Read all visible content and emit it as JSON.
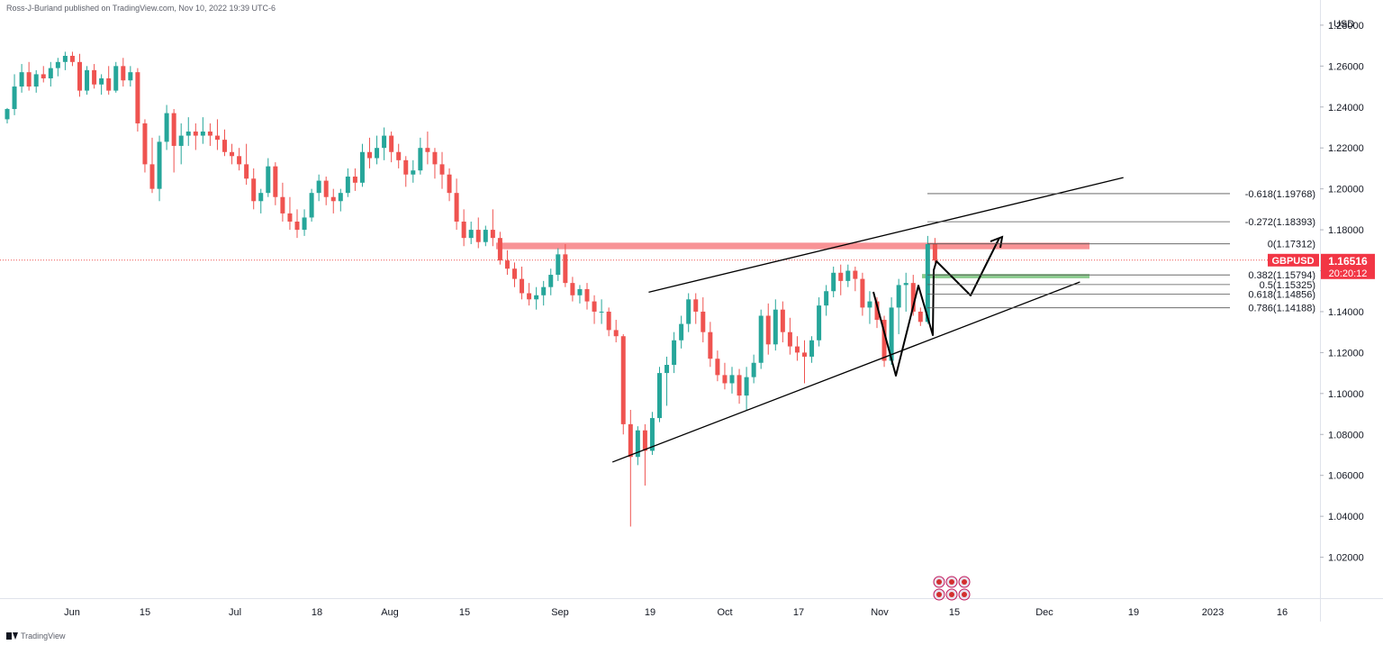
{
  "attribution": "Ross-J-Burland published on TradingView.com, Nov 10, 2022 19:39 UTC-6",
  "footer_brand": "TradingView",
  "colors": {
    "up": "#26a69a",
    "down": "#ef5350",
    "resistance_zone": "#f7868a",
    "support_zone": "#66bb6a",
    "price_tag": "#f23645",
    "axis_text": "#131722",
    "drawing": "#000000"
  },
  "chart_data": {
    "type": "candlestick",
    "symbol": "GBPUSD",
    "currency_label": "USD",
    "ylim": [
      1.0,
      1.287
    ],
    "price_ticks": [
      "1.28000",
      "1.26000",
      "1.24000",
      "1.22000",
      "1.20000",
      "1.18000",
      "1.16000",
      "1.14000",
      "1.12000",
      "1.10000",
      "1.08000",
      "1.06000",
      "1.04000",
      "1.02000"
    ],
    "x_ticks": [
      "Jun",
      "15",
      "Jul",
      "18",
      "Aug",
      "15",
      "Sep",
      "19",
      "Oct",
      "17",
      "Nov",
      "15",
      "Dec",
      "19",
      "2023",
      "16"
    ],
    "last_price": "1.16516",
    "countdown": "20:20:12",
    "last_price_value": 1.16516,
    "candles": [
      [
        1.234,
        1.2395,
        1.232,
        1.239
      ],
      [
        1.239,
        1.256,
        1.236,
        1.25
      ],
      [
        1.25,
        1.261,
        1.247,
        1.257
      ],
      [
        1.257,
        1.262,
        1.248,
        1.25
      ],
      [
        1.25,
        1.258,
        1.247,
        1.256
      ],
      [
        1.256,
        1.26,
        1.252,
        1.254
      ],
      [
        1.254,
        1.262,
        1.25,
        1.259
      ],
      [
        1.259,
        1.264,
        1.255,
        1.262
      ],
      [
        1.262,
        1.267,
        1.258,
        1.265
      ],
      [
        1.265,
        1.267,
        1.26,
        1.262
      ],
      [
        1.262,
        1.266,
        1.245,
        1.248
      ],
      [
        1.248,
        1.26,
        1.246,
        1.258
      ],
      [
        1.258,
        1.261,
        1.249,
        1.251
      ],
      [
        1.251,
        1.256,
        1.246,
        1.254
      ],
      [
        1.254,
        1.26,
        1.246,
        1.248
      ],
      [
        1.248,
        1.262,
        1.247,
        1.26
      ],
      [
        1.26,
        1.264,
        1.25,
        1.253
      ],
      [
        1.253,
        1.26,
        1.25,
        1.257
      ],
      [
        1.257,
        1.259,
        1.228,
        1.232
      ],
      [
        1.232,
        1.234,
        1.208,
        1.212
      ],
      [
        1.212,
        1.225,
        1.198,
        1.2
      ],
      [
        1.2,
        1.226,
        1.194,
        1.223
      ],
      [
        1.223,
        1.241,
        1.219,
        1.237
      ],
      [
        1.237,
        1.239,
        1.208,
        1.221
      ],
      [
        1.221,
        1.232,
        1.212,
        1.226
      ],
      [
        1.226,
        1.235,
        1.221,
        1.228
      ],
      [
        1.228,
        1.232,
        1.219,
        1.226
      ],
      [
        1.226,
        1.235,
        1.222,
        1.228
      ],
      [
        1.228,
        1.232,
        1.221,
        1.226
      ],
      [
        1.226,
        1.234,
        1.219,
        1.224
      ],
      [
        1.224,
        1.229,
        1.216,
        1.218
      ],
      [
        1.218,
        1.222,
        1.212,
        1.216
      ],
      [
        1.216,
        1.22,
        1.209,
        1.212
      ],
      [
        1.212,
        1.222,
        1.202,
        1.205
      ],
      [
        1.205,
        1.21,
        1.19,
        1.194
      ],
      [
        1.194,
        1.2,
        1.188,
        1.198
      ],
      [
        1.198,
        1.215,
        1.196,
        1.211
      ],
      [
        1.211,
        1.213,
        1.192,
        1.196
      ],
      [
        1.196,
        1.203,
        1.184,
        1.188
      ],
      [
        1.188,
        1.196,
        1.18,
        1.184
      ],
      [
        1.184,
        1.19,
        1.176,
        1.18
      ],
      [
        1.18,
        1.19,
        1.177,
        1.186
      ],
      [
        1.186,
        1.2,
        1.184,
        1.198
      ],
      [
        1.198,
        1.207,
        1.194,
        1.204
      ],
      [
        1.204,
        1.206,
        1.192,
        1.196
      ],
      [
        1.196,
        1.2,
        1.188,
        1.194
      ],
      [
        1.194,
        1.2,
        1.189,
        1.198
      ],
      [
        1.198,
        1.21,
        1.196,
        1.206
      ],
      [
        1.206,
        1.21,
        1.199,
        1.203
      ],
      [
        1.203,
        1.222,
        1.201,
        1.218
      ],
      [
        1.218,
        1.225,
        1.21,
        1.215
      ],
      [
        1.215,
        1.226,
        1.212,
        1.22
      ],
      [
        1.22,
        1.23,
        1.214,
        1.226
      ],
      [
        1.226,
        1.228,
        1.213,
        1.218
      ],
      [
        1.218,
        1.222,
        1.21,
        1.214
      ],
      [
        1.214,
        1.216,
        1.201,
        1.207
      ],
      [
        1.207,
        1.214,
        1.203,
        1.209
      ],
      [
        1.209,
        1.225,
        1.207,
        1.22
      ],
      [
        1.22,
        1.228,
        1.212,
        1.218
      ],
      [
        1.218,
        1.22,
        1.205,
        1.212
      ],
      [
        1.212,
        1.218,
        1.2,
        1.207
      ],
      [
        1.207,
        1.21,
        1.194,
        1.198
      ],
      [
        1.198,
        1.205,
        1.18,
        1.184
      ],
      [
        1.184,
        1.19,
        1.172,
        1.176
      ],
      [
        1.176,
        1.184,
        1.173,
        1.18
      ],
      [
        1.18,
        1.186,
        1.171,
        1.174
      ],
      [
        1.174,
        1.182,
        1.172,
        1.18
      ],
      [
        1.18,
        1.19,
        1.172,
        1.176
      ],
      [
        1.176,
        1.179,
        1.163,
        1.165
      ],
      [
        1.165,
        1.17,
        1.158,
        1.161
      ],
      [
        1.161,
        1.164,
        1.152,
        1.156
      ],
      [
        1.156,
        1.162,
        1.146,
        1.149
      ],
      [
        1.149,
        1.154,
        1.143,
        1.146
      ],
      [
        1.146,
        1.152,
        1.141,
        1.148
      ],
      [
        1.148,
        1.155,
        1.143,
        1.152
      ],
      [
        1.152,
        1.161,
        1.148,
        1.158
      ],
      [
        1.158,
        1.171,
        1.155,
        1.168
      ],
      [
        1.168,
        1.173,
        1.152,
        1.154
      ],
      [
        1.154,
        1.157,
        1.145,
        1.148
      ],
      [
        1.148,
        1.153,
        1.144,
        1.151
      ],
      [
        1.151,
        1.154,
        1.141,
        1.145
      ],
      [
        1.145,
        1.148,
        1.134,
        1.14
      ],
      [
        1.14,
        1.146,
        1.134,
        1.14
      ],
      [
        1.14,
        1.142,
        1.128,
        1.131
      ],
      [
        1.131,
        1.136,
        1.125,
        1.128
      ],
      [
        1.128,
        1.129,
        1.08,
        1.085
      ],
      [
        1.085,
        1.092,
        1.035,
        1.069
      ],
      [
        1.069,
        1.084,
        1.065,
        1.082
      ],
      [
        1.082,
        1.085,
        1.055,
        1.072
      ],
      [
        1.072,
        1.091,
        1.07,
        1.088
      ],
      [
        1.088,
        1.113,
        1.086,
        1.11
      ],
      [
        1.11,
        1.118,
        1.094,
        1.114
      ],
      [
        1.114,
        1.13,
        1.11,
        1.126
      ],
      [
        1.126,
        1.138,
        1.122,
        1.134
      ],
      [
        1.134,
        1.149,
        1.13,
        1.146
      ],
      [
        1.146,
        1.149,
        1.134,
        1.14
      ],
      [
        1.14,
        1.147,
        1.125,
        1.13
      ],
      [
        1.13,
        1.135,
        1.113,
        1.117
      ],
      [
        1.117,
        1.121,
        1.106,
        1.109
      ],
      [
        1.109,
        1.115,
        1.102,
        1.105
      ],
      [
        1.105,
        1.113,
        1.1,
        1.109
      ],
      [
        1.109,
        1.112,
        1.095,
        1.099
      ],
      [
        1.099,
        1.113,
        1.092,
        1.108
      ],
      [
        1.108,
        1.119,
        1.105,
        1.115
      ],
      [
        1.115,
        1.141,
        1.112,
        1.138
      ],
      [
        1.138,
        1.144,
        1.119,
        1.124
      ],
      [
        1.124,
        1.146,
        1.121,
        1.141
      ],
      [
        1.141,
        1.145,
        1.125,
        1.13
      ],
      [
        1.13,
        1.137,
        1.119,
        1.123
      ],
      [
        1.123,
        1.128,
        1.116,
        1.12
      ],
      [
        1.12,
        1.126,
        1.105,
        1.118
      ],
      [
        1.118,
        1.128,
        1.115,
        1.126
      ],
      [
        1.126,
        1.147,
        1.123,
        1.143
      ],
      [
        1.143,
        1.153,
        1.138,
        1.15
      ],
      [
        1.15,
        1.162,
        1.147,
        1.159
      ],
      [
        1.159,
        1.163,
        1.148,
        1.155
      ],
      [
        1.155,
        1.163,
        1.152,
        1.16
      ],
      [
        1.16,
        1.162,
        1.15,
        1.156
      ],
      [
        1.156,
        1.159,
        1.138,
        1.142
      ],
      [
        1.142,
        1.15,
        1.134,
        1.145
      ],
      [
        1.145,
        1.147,
        1.132,
        1.136
      ],
      [
        1.136,
        1.138,
        1.113,
        1.116
      ],
      [
        1.116,
        1.147,
        1.114,
        1.142
      ],
      [
        1.142,
        1.156,
        1.129,
        1.153
      ],
      [
        1.153,
        1.159,
        1.14,
        1.154
      ],
      [
        1.154,
        1.158,
        1.138,
        1.14
      ],
      [
        1.14,
        1.142,
        1.133,
        1.135
      ],
      [
        1.135,
        1.177,
        1.134,
        1.173
      ],
      [
        1.173,
        1.176,
        1.164,
        1.165
      ]
    ],
    "fib_levels": [
      {
        "label": "-0.618(1.19768)",
        "price": 1.19768
      },
      {
        "label": "-0.272(1.18393)",
        "price": 1.18393
      },
      {
        "label": "0(1.17312)",
        "price": 1.17312
      },
      {
        "label": "0.382(1.15794)",
        "price": 1.15794
      },
      {
        "label": "0.5(1.15325)",
        "price": 1.15325
      },
      {
        "label": "0.618(1.14856)",
        "price": 1.14856
      },
      {
        "label": "0.786(1.14188)",
        "price": 1.14188
      }
    ],
    "zones": [
      {
        "name": "resistance",
        "top": 1.1737,
        "bottom": 1.1705
      },
      {
        "name": "support",
        "top": 1.1584,
        "bottom": 1.1563
      }
    ],
    "trendlines": [
      {
        "name": "upper-trendline",
        "from": [
          1.1495,
          89
        ],
        "to": [
          1.2055,
          154
        ]
      },
      {
        "name": "lower-trendline",
        "from": [
          1.0665,
          84
        ],
        "to": [
          1.1545,
          148
        ]
      }
    ],
    "events_badge": "economic-events-flags"
  }
}
